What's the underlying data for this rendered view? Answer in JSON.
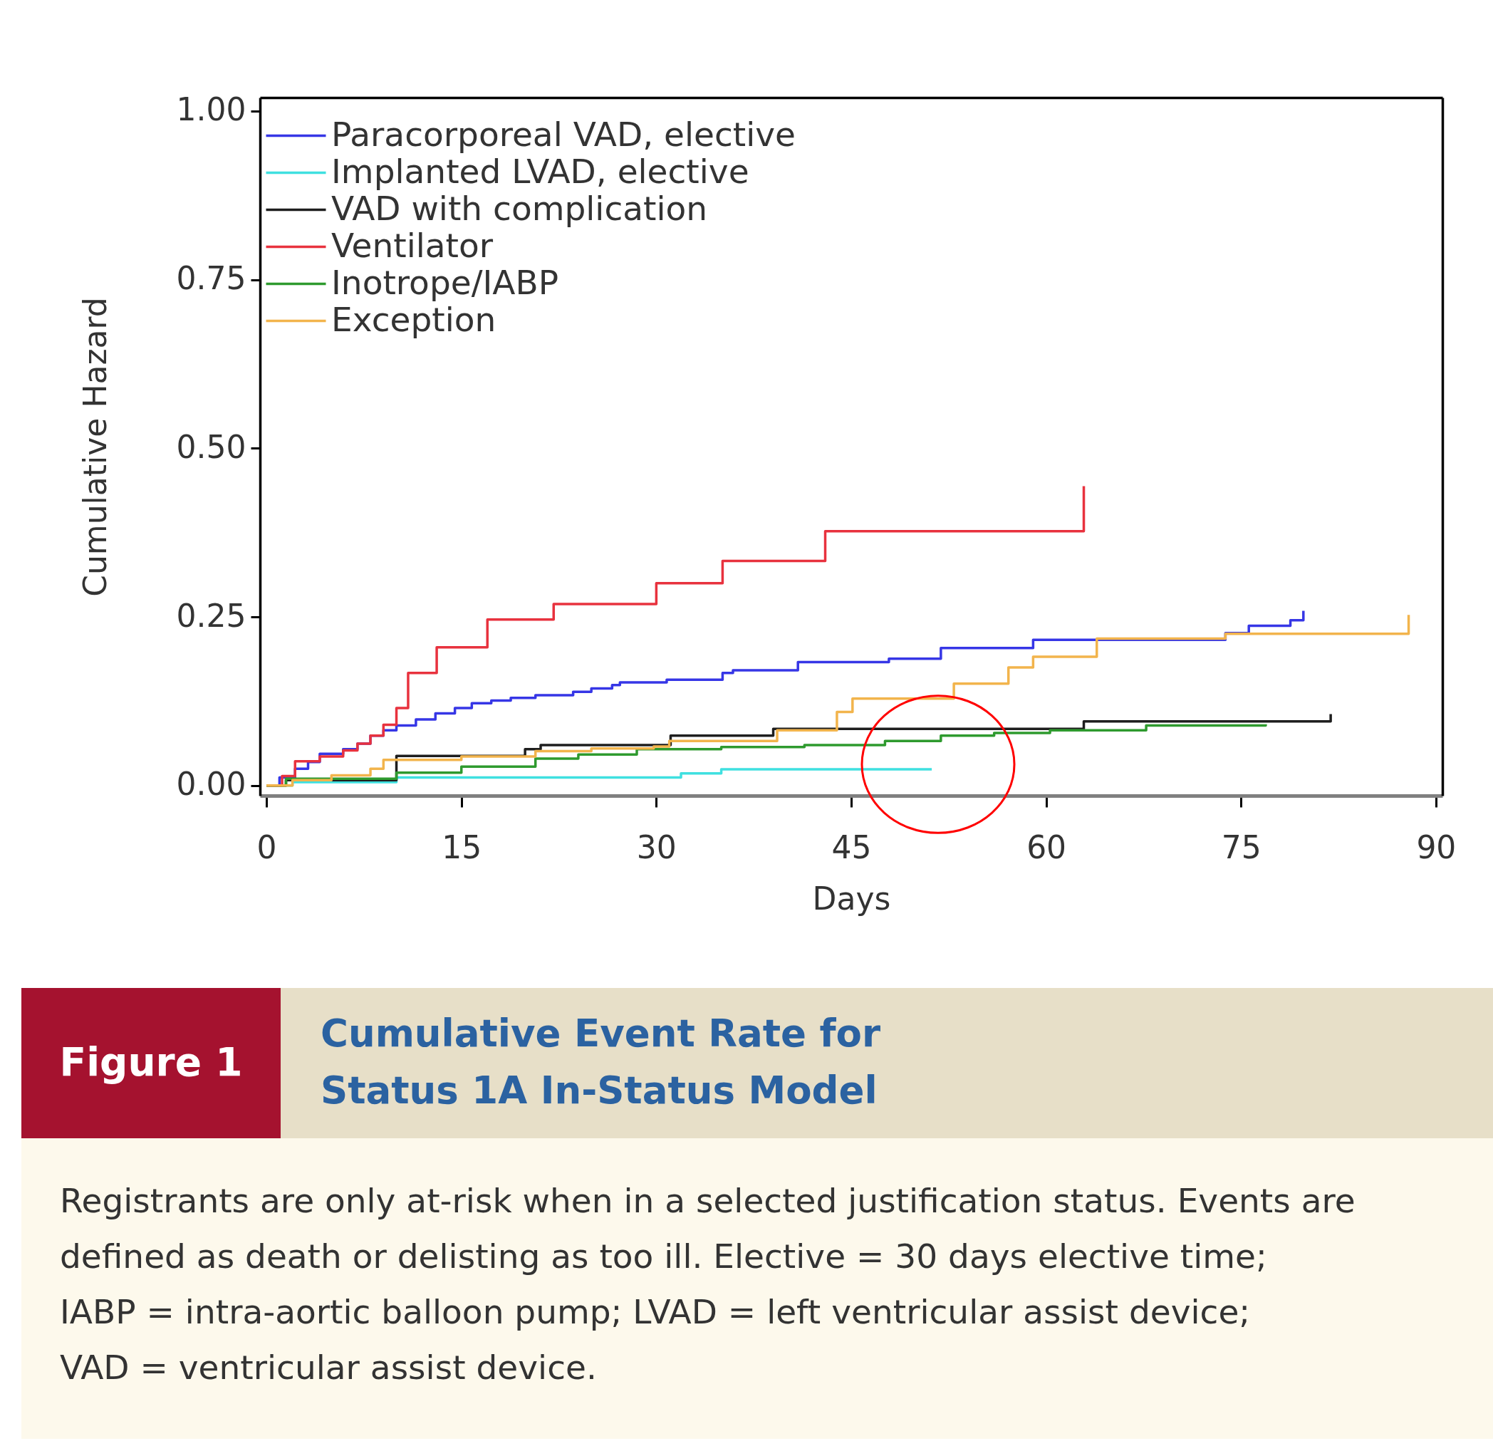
{
  "chart_data": {
    "type": "step",
    "title": "Cumulative Event Rate for Status 1A In-Status Model",
    "xlabel": "Days",
    "ylabel": "Cumulative Hazard",
    "annotations": [
      "Figure 1",
      "Registrants are only at-risk when in a selected justification status. Events are defined as death or delisting as too ill. Elective = 30 days elective time; IABP = intra-aortic balloon pump; LVAD = left ventricular assist device; VAD = ventricular assist device."
    ],
    "xlim": [
      -0.5,
      90.5
    ],
    "xticks": [
      0,
      15,
      30,
      45,
      60,
      75,
      90
    ],
    "ylim": [
      -0.015,
      1.02
    ],
    "yticks": [
      {
        "value": 0,
        "label": "0.00"
      },
      {
        "value": 0.25,
        "label": "0.25"
      },
      {
        "value": 0.5,
        "label": "0.50"
      },
      {
        "value": 0.75,
        "label": "0.75"
      },
      {
        "value": 1,
        "label": "1.00"
      }
    ],
    "legend": "top left",
    "series": [
      {
        "name": "Paracorporeal VAD, elective",
        "color": "#3636e6",
        "x": [
          0,
          1,
          2.2,
          3.2,
          4.1,
          5.9,
          7,
          8,
          9,
          10,
          11.5,
          13,
          14.5,
          15.8,
          17.3,
          18.8,
          20.7,
          23.6,
          25,
          26.6,
          27.2,
          30.8,
          35.1,
          35.9,
          40.9,
          47.9,
          51.9,
          59,
          73.8,
          75.6,
          78.8,
          79.8
        ],
        "values": [
          0,
          0.012,
          0.025,
          0.035,
          0.047,
          0.054,
          0.062,
          0.074,
          0.082,
          0.089,
          0.098,
          0.107,
          0.115,
          0.122,
          0.126,
          0.13,
          0.134,
          0.139,
          0.144,
          0.149,
          0.153,
          0.157,
          0.167,
          0.171,
          0.183,
          0.188,
          0.204,
          0.216,
          0.226,
          0.237,
          0.245,
          0.259
        ]
      },
      {
        "name": "Implanted LVAD, elective",
        "color": "#3fe0e0",
        "x": [
          0,
          2,
          10,
          31.9,
          35,
          51.2
        ],
        "values": [
          0,
          0.005,
          0.012,
          0.018,
          0.024,
          0.024
        ]
      },
      {
        "name": "VAD with complication",
        "color": "#1e1e1e",
        "x": [
          0,
          1.5,
          10,
          19.9,
          21.1,
          31.1,
          39,
          62.9,
          81.9
        ],
        "values": [
          0,
          0.008,
          0.044,
          0.054,
          0.06,
          0.074,
          0.084,
          0.095,
          0.106
        ]
      },
      {
        "name": "Ventilator",
        "color": "#e8323e",
        "x": [
          0,
          1.2,
          2.2,
          4.1,
          5.9,
          7,
          8,
          9,
          10,
          10.9,
          13.1,
          17,
          22.1,
          30,
          35.1,
          43,
          62.9
        ],
        "values": [
          0,
          0.014,
          0.036,
          0.043,
          0.052,
          0.062,
          0.074,
          0.09,
          0.115,
          0.167,
          0.205,
          0.246,
          0.269,
          0.3,
          0.333,
          0.377,
          0.444
        ]
      },
      {
        "name": "Inotrope/IABP",
        "color": "#2e9a2e",
        "x": [
          0,
          1.5,
          10,
          15,
          20.7,
          24,
          28.5,
          35,
          41.4,
          47.6,
          51.9,
          56,
          60.3,
          67.7,
          76.9
        ],
        "values": [
          0,
          0.01,
          0.019,
          0.028,
          0.04,
          0.046,
          0.054,
          0.057,
          0.06,
          0.066,
          0.074,
          0.078,
          0.082,
          0.089,
          0.091
        ]
      },
      {
        "name": "Exception",
        "color": "#f2b44c",
        "x": [
          0,
          2,
          5,
          8,
          9,
          15,
          20.7,
          25,
          29.8,
          31,
          39.3,
          43.9,
          45.1,
          52.9,
          57.1,
          59,
          63.9,
          73.8,
          87.9
        ],
        "values": [
          0,
          0.008,
          0.015,
          0.025,
          0.038,
          0.043,
          0.051,
          0.055,
          0.058,
          0.066,
          0.082,
          0.109,
          0.129,
          0.151,
          0.175,
          0.191,
          0.218,
          0.225,
          0.253
        ]
      }
    ]
  }
}
